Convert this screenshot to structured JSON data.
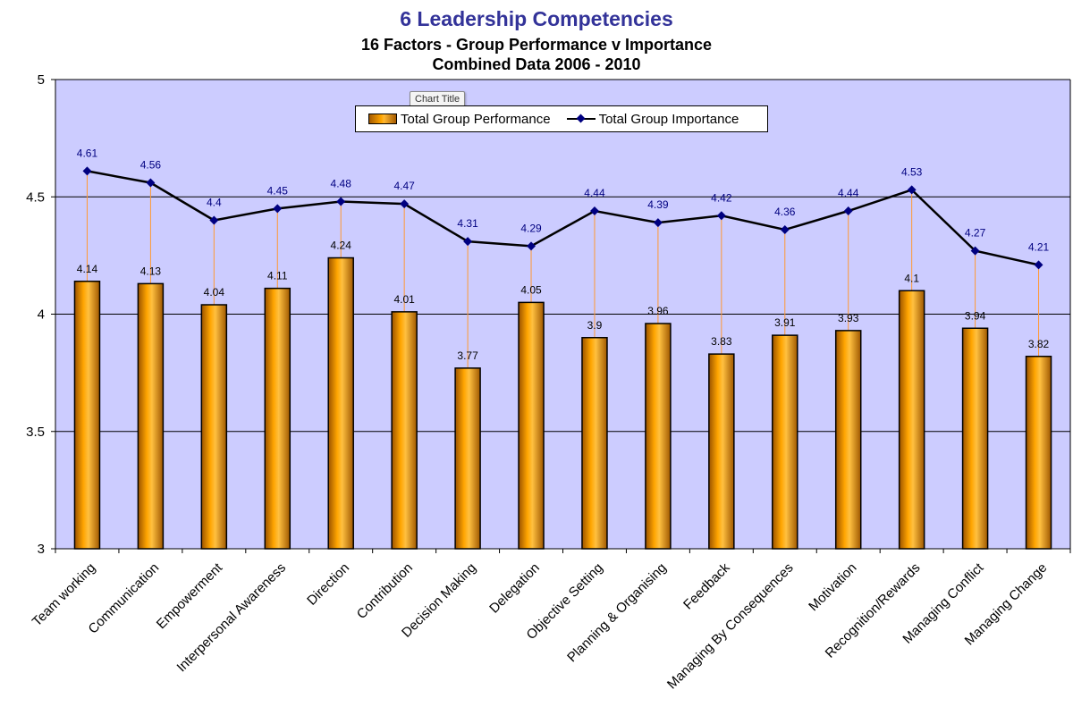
{
  "title": "6 Leadership Competencies",
  "subtitle1": "16 Factors - Group Performance v Importance",
  "subtitle2": "Combined Data 2006 - 2010",
  "tooltip": "Chart Title",
  "colors": {
    "plot_background": "#ccccff",
    "bar_fill": "#ffa500",
    "line": "#000000",
    "marker": "#000080",
    "drop_line": "#ff9933",
    "line_label": "#000080",
    "bar_label": "#000000"
  },
  "chart_data": {
    "type": "bar",
    "categories": [
      "Team working",
      "Communication",
      "Empowerment",
      "Interpersonal Awareness",
      "Direction",
      "Contribution",
      "Decision Making",
      "Delegation",
      "Objective Setting",
      "Planning & Organising",
      "Feedback",
      "Managing By Consequences",
      "Motivation",
      "Recognition/Rewards",
      "Managing Conflict",
      "Managing Change"
    ],
    "series": [
      {
        "name": "Total Group Performance",
        "type": "bar",
        "values": [
          4.14,
          4.13,
          4.04,
          4.11,
          4.24,
          4.01,
          3.77,
          4.05,
          3.9,
          3.96,
          3.83,
          3.91,
          3.93,
          4.1,
          3.94,
          3.82
        ],
        "labels": [
          "4.14",
          "4.13",
          "4.04",
          "4.11",
          "4.24",
          "4.01",
          "3.77",
          "4.05",
          "3.9",
          "3.96",
          "3.83",
          "3.91",
          "3.93",
          "4.1",
          "3.94",
          "3.82"
        ]
      },
      {
        "name": "Total Group Importance",
        "type": "line",
        "values": [
          4.61,
          4.56,
          4.4,
          4.45,
          4.48,
          4.47,
          4.31,
          4.29,
          4.44,
          4.39,
          4.42,
          4.36,
          4.44,
          4.53,
          4.27,
          4.21
        ],
        "labels": [
          "4.61",
          "4.56",
          "4.4",
          "4.45",
          "4.48",
          "4.47",
          "4.31",
          "4.29",
          "4.44",
          "4.39",
          "4.42",
          "4.36",
          "4.44",
          "4.53",
          "4.27",
          "4.21"
        ]
      }
    ],
    "ylim": [
      3,
      5
    ],
    "yticks": [
      3,
      3.5,
      4,
      4.5,
      5
    ],
    "ytick_labels": [
      "3",
      "3.5",
      "4",
      "4.5",
      "5"
    ],
    "grid": true,
    "legend_position": "top-center"
  }
}
